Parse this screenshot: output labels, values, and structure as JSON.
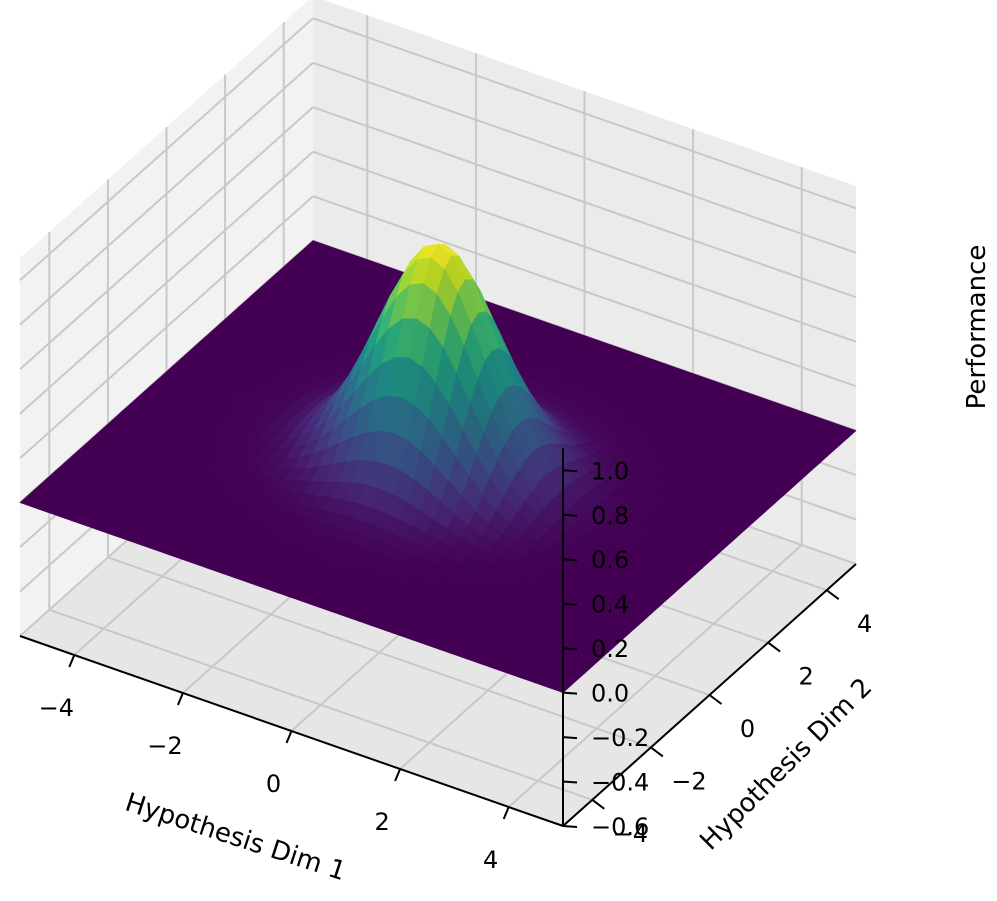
{
  "chart_data": {
    "type": "surface",
    "function": "gaussian",
    "x": {
      "label": "Hypothesis Dim 1",
      "ticks": [
        -4,
        -2,
        0,
        2,
        4
      ],
      "tick_labels": [
        "−4",
        "−2",
        "0",
        "2",
        "4"
      ],
      "range": [
        -5,
        5
      ]
    },
    "y": {
      "label": "Hypothesis Dim 2",
      "ticks": [
        -4,
        -2,
        0,
        2,
        4
      ],
      "tick_labels": [
        "−4",
        "−2",
        "0",
        "2",
        "4"
      ],
      "range": [
        -5,
        5
      ]
    },
    "z": {
      "label": "Performance",
      "ticks": [
        -0.6,
        -0.4,
        -0.2,
        0.0,
        0.2,
        0.4,
        0.6,
        0.8,
        1.0
      ],
      "tick_labels": [
        "−0.6",
        "−0.4",
        "−0.2",
        "0.0",
        "0.2",
        "0.4",
        "0.6",
        "0.8",
        "1.0"
      ],
      "range": [
        -0.6,
        1.1
      ]
    },
    "peak": {
      "x": 0,
      "y": 0,
      "z": 1.0
    },
    "sigma": 1.0,
    "colormap": "viridis",
    "grid": true,
    "pane_color": "#f2f2f2",
    "grid_color": "#c8c8c8"
  }
}
